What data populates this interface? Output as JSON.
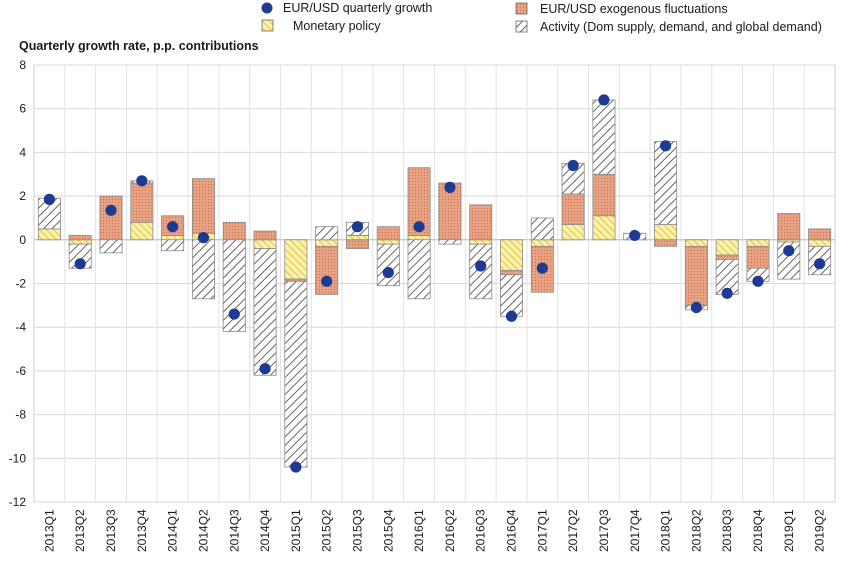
{
  "chart_data": {
    "type": "bar",
    "title": "",
    "ylabel": "Quarterly growth rate, p.p. contributions",
    "xlabel": "",
    "ylim": [
      -12,
      8
    ],
    "yticks": [
      8,
      6,
      4,
      2,
      0,
      -2,
      -4,
      -6,
      -8,
      -10,
      -12
    ],
    "grid": true,
    "stacked": true,
    "legend_position": "top",
    "categories": [
      "2013Q1",
      "2013Q2",
      "2013Q3",
      "2013Q4",
      "2014Q1",
      "2014Q2",
      "2014Q3",
      "2014Q4",
      "2015Q1",
      "2015Q2",
      "2015Q3",
      "2015Q4",
      "2016Q1",
      "2016Q2",
      "2016Q3",
      "2016Q4",
      "2017Q1",
      "2017Q2",
      "2017Q3",
      "2017Q4",
      "2018Q1",
      "2018Q2",
      "2018Q3",
      "2018Q4",
      "2019Q1",
      "2019Q2"
    ],
    "series": [
      {
        "name": "Monetary policy",
        "kind": "bar",
        "color": "#f5e27a",
        "pattern": "diagonal-hatch-yellow",
        "values": [
          0.5,
          -0.2,
          0.0,
          0.8,
          0.2,
          0.3,
          0.0,
          -0.4,
          -1.8,
          -0.3,
          0.2,
          -0.2,
          0.2,
          0.0,
          -0.2,
          -1.4,
          -0.3,
          0.7,
          1.1,
          0.0,
          0.7,
          -0.3,
          -0.7,
          -0.3,
          -0.1,
          -0.3
        ]
      },
      {
        "name": "EUR/USD exogenous fluctuations",
        "kind": "bar",
        "color": "#e8a889",
        "pattern": "crosshatch-orange",
        "values": [
          0.0,
          0.2,
          2.0,
          1.8,
          0.9,
          2.5,
          0.8,
          0.4,
          -0.1,
          -2.2,
          -0.4,
          0.6,
          3.1,
          2.6,
          1.6,
          -0.2,
          -2.1,
          1.4,
          1.9,
          0.0,
          -0.3,
          -2.7,
          -0.2,
          -1.0,
          1.2,
          0.5
        ]
      },
      {
        "name": "Activity (Dom supply, demand, and global demand)",
        "kind": "bar",
        "color": "#ffffff",
        "pattern": "diagonal-hatch-grey",
        "values": [
          1.4,
          -1.1,
          -0.6,
          0.1,
          -0.5,
          -2.7,
          -4.2,
          -5.8,
          -8.5,
          0.6,
          0.6,
          -1.9,
          -2.7,
          -0.2,
          -2.5,
          -1.9,
          1.0,
          1.4,
          3.4,
          0.3,
          3.8,
          -0.2,
          -1.6,
          -0.6,
          -1.7,
          -1.3
        ]
      },
      {
        "name": "EUR/USD quarterly growth",
        "kind": "point",
        "color": "#1f3a93",
        "values": [
          1.85,
          -1.1,
          1.35,
          2.7,
          0.6,
          0.1,
          -3.4,
          -5.9,
          -10.4,
          -1.9,
          0.6,
          -1.5,
          0.6,
          2.4,
          -1.2,
          -3.5,
          -1.3,
          3.4,
          6.4,
          0.2,
          4.3,
          -3.1,
          -2.45,
          -1.9,
          -0.5,
          -1.1
        ]
      }
    ]
  }
}
